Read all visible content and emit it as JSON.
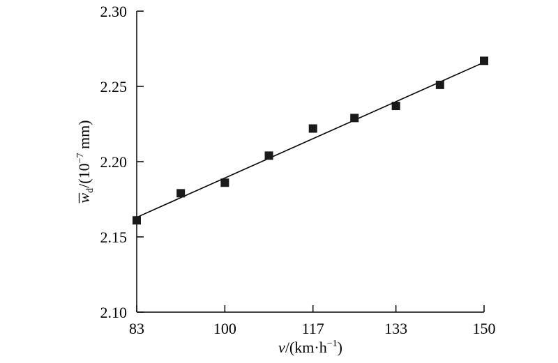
{
  "chart_data": {
    "type": "scatter",
    "xlabel": {
      "var": "v",
      "rest": "/(km·h",
      "exp": "−1",
      "close": ")"
    },
    "ylabel": {
      "var": "w",
      "sub": "d",
      "rest": "/(10",
      "exp": "−7",
      "unit": " mm)"
    },
    "xlim": [
      83,
      150
    ],
    "ylim": [
      2.1,
      2.3
    ],
    "xticks": [
      83,
      100,
      117,
      133,
      150
    ],
    "xtick_labels": [
      "83",
      "100",
      "117",
      "133",
      "150"
    ],
    "yticks": [
      2.1,
      2.15,
      2.2,
      2.25,
      2.3
    ],
    "ytick_labels": [
      "2.10",
      "2.15",
      "2.20",
      "2.25",
      "2.30"
    ],
    "points": [
      {
        "x": 83,
        "y": 2.161
      },
      {
        "x": 91.5,
        "y": 2.179
      },
      {
        "x": 100,
        "y": 2.186
      },
      {
        "x": 108.5,
        "y": 2.204
      },
      {
        "x": 117,
        "y": 2.222
      },
      {
        "x": 125,
        "y": 2.229
      },
      {
        "x": 133,
        "y": 2.237
      },
      {
        "x": 141.5,
        "y": 2.251
      },
      {
        "x": 150,
        "y": 2.267
      }
    ],
    "fit_line": {
      "x": [
        83,
        150
      ],
      "y": [
        2.163,
        2.266
      ]
    },
    "grid": false,
    "legend": "none"
  }
}
